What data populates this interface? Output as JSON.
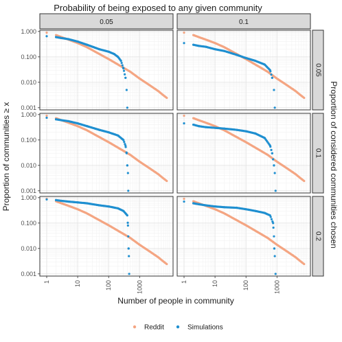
{
  "chart_data": {
    "type": "scatter",
    "title": "Probability of being exposed to any given community",
    "xlabel": "Number of people in community",
    "ylabel": "Proportion of communities ≥ x",
    "right_label": "Proportion of considered communities chosen",
    "x_scale": "log",
    "y_scale": "log",
    "xlim": [
      1,
      10000
    ],
    "ylim": [
      0.001,
      1
    ],
    "x_ticks": [
      "1",
      "10",
      "100",
      "1000"
    ],
    "y_ticks": [
      "0.001",
      "0.010",
      "0.100",
      "1.000"
    ],
    "col_facets": [
      "0.05",
      "0.1"
    ],
    "row_facets": [
      "0.05",
      "0.1",
      "0.2"
    ],
    "grid": true,
    "legend_position": "bottom",
    "legend": [
      {
        "name": "Reddit",
        "color": "#F4A582"
      },
      {
        "name": "Simulations",
        "color": "#1F8FD0"
      }
    ],
    "reddit_series": [
      [
        1,
        0.9
      ],
      [
        2,
        0.72
      ],
      [
        3,
        0.6
      ],
      [
        5,
        0.48
      ],
      [
        10,
        0.35
      ],
      [
        20,
        0.24
      ],
      [
        50,
        0.13
      ],
      [
        100,
        0.082
      ],
      [
        200,
        0.05
      ],
      [
        500,
        0.026
      ],
      [
        1000,
        0.014
      ],
      [
        2000,
        0.008
      ],
      [
        4000,
        0.0045
      ],
      [
        6000,
        0.003
      ],
      [
        8000,
        0.0023
      ]
    ],
    "panels": [
      {
        "row": "0.05",
        "col": "0.05",
        "simulations": [
          [
            1,
            0.65
          ],
          [
            2,
            0.6
          ],
          [
            3,
            0.55
          ],
          [
            5,
            0.5
          ],
          [
            10,
            0.4
          ],
          [
            20,
            0.3
          ],
          [
            50,
            0.2
          ],
          [
            100,
            0.16
          ],
          [
            150,
            0.13
          ],
          [
            200,
            0.1
          ],
          [
            250,
            0.07
          ],
          [
            300,
            0.035
          ],
          [
            350,
            0.015
          ],
          [
            380,
            0.005
          ],
          [
            400,
            0.001
          ]
        ]
      },
      {
        "row": "0.05",
        "col": "0.1",
        "simulations": [
          [
            1,
            0.35
          ],
          [
            2,
            0.3
          ],
          [
            3,
            0.27
          ],
          [
            5,
            0.25
          ],
          [
            10,
            0.2
          ],
          [
            20,
            0.17
          ],
          [
            50,
            0.12
          ],
          [
            100,
            0.09
          ],
          [
            200,
            0.07
          ],
          [
            400,
            0.05
          ],
          [
            600,
            0.03
          ],
          [
            700,
            0.015
          ],
          [
            800,
            0.005
          ],
          [
            850,
            0.001
          ]
        ]
      },
      {
        "row": "0.1",
        "col": "0.05",
        "simulations": [
          [
            1,
            0.75
          ],
          [
            2,
            0.65
          ],
          [
            3,
            0.6
          ],
          [
            5,
            0.55
          ],
          [
            10,
            0.45
          ],
          [
            20,
            0.35
          ],
          [
            50,
            0.25
          ],
          [
            100,
            0.2
          ],
          [
            200,
            0.15
          ],
          [
            300,
            0.1
          ],
          [
            350,
            0.06
          ],
          [
            380,
            0.03
          ],
          [
            400,
            0.01
          ],
          [
            420,
            0.005
          ],
          [
            430,
            0.001
          ]
        ]
      },
      {
        "row": "0.1",
        "col": "0.1",
        "simulations": [
          [
            1,
            0.45
          ],
          [
            2,
            0.4
          ],
          [
            3,
            0.35
          ],
          [
            5,
            0.32
          ],
          [
            10,
            0.3
          ],
          [
            20,
            0.28
          ],
          [
            50,
            0.25
          ],
          [
            100,
            0.22
          ],
          [
            200,
            0.18
          ],
          [
            400,
            0.12
          ],
          [
            600,
            0.06
          ],
          [
            700,
            0.03
          ],
          [
            800,
            0.01
          ],
          [
            850,
            0.005
          ],
          [
            900,
            0.001
          ]
        ]
      },
      {
        "row": "0.2",
        "col": "0.05",
        "simulations": [
          [
            1,
            0.85
          ],
          [
            2,
            0.8
          ],
          [
            3,
            0.75
          ],
          [
            5,
            0.7
          ],
          [
            10,
            0.65
          ],
          [
            20,
            0.6
          ],
          [
            50,
            0.5
          ],
          [
            100,
            0.45
          ],
          [
            200,
            0.38
          ],
          [
            300,
            0.3
          ],
          [
            400,
            0.2
          ],
          [
            420,
            0.08
          ],
          [
            430,
            0.03
          ],
          [
            440,
            0.01
          ],
          [
            450,
            0.005
          ],
          [
            460,
            0.001
          ]
        ]
      },
      {
        "row": "0.2",
        "col": "0.1",
        "simulations": [
          [
            1,
            0.7
          ],
          [
            2,
            0.6
          ],
          [
            3,
            0.55
          ],
          [
            5,
            0.5
          ],
          [
            10,
            0.45
          ],
          [
            20,
            0.42
          ],
          [
            50,
            0.4
          ],
          [
            100,
            0.35
          ],
          [
            200,
            0.3
          ],
          [
            400,
            0.25
          ],
          [
            600,
            0.2
          ],
          [
            750,
            0.1
          ],
          [
            800,
            0.03
          ],
          [
            820,
            0.01
          ],
          [
            850,
            0.005
          ],
          [
            900,
            0.001
          ]
        ]
      }
    ]
  }
}
